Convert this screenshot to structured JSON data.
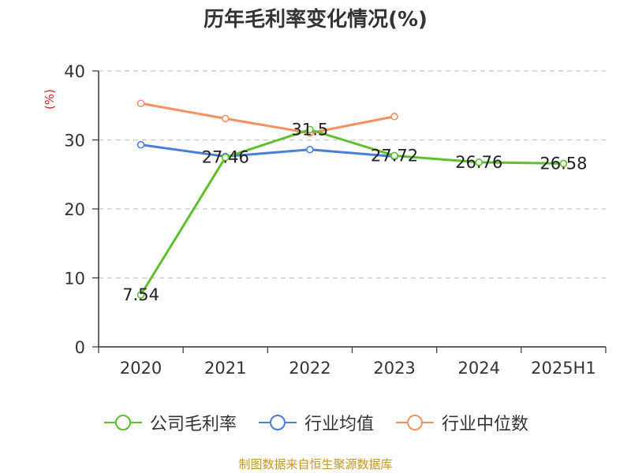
{
  "chart_data": {
    "type": "line",
    "title": "历年毛利率变化情况(%)",
    "ylabel": "(%)",
    "categories": [
      "2020",
      "2021",
      "2022",
      "2023",
      "2024",
      "2025H1"
    ],
    "ylim": [
      0,
      40
    ],
    "yticks": [
      "0",
      "10",
      "20",
      "30",
      "40"
    ],
    "grid": true,
    "legend_position": "bottom",
    "series": [
      {
        "name": "公司毛利率",
        "color": "#5dc02c",
        "values": [
          7.54,
          27.46,
          31.5,
          27.72,
          26.76,
          26.58
        ],
        "labels": [
          "7.54",
          "27.46",
          "31.5",
          "27.72",
          "26.76",
          "26.58"
        ]
      },
      {
        "name": "行业均值",
        "color": "#4a7fd6",
        "values": [
          29.3,
          27.6,
          28.6,
          27.6,
          null,
          null
        ]
      },
      {
        "name": "行业中位数",
        "color": "#f59060",
        "values": [
          35.3,
          33.1,
          31.0,
          33.4,
          null,
          null
        ]
      }
    ]
  },
  "source": "制图数据来自恒生聚源数据库"
}
